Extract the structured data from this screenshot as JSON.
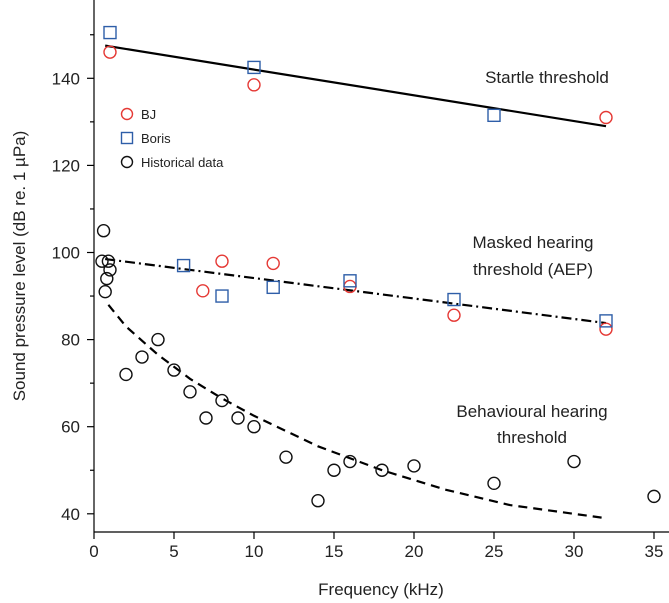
{
  "chart_data": {
    "type": "scatter",
    "xlabel": "Frequency (kHz)",
    "ylabel": "Sound pressure level (dB re. 1 µPa)",
    "xlim": [
      0,
      36
    ],
    "ylim": [
      37,
      153
    ],
    "xticks": [
      "0",
      "5",
      "10",
      "15",
      "20",
      "25",
      "30",
      "35"
    ],
    "yticks": [
      "40",
      "60",
      "80",
      "100",
      "120",
      "140"
    ],
    "grid": false,
    "legend_position": "upper-left",
    "colors": {
      "BJ": "#e53935",
      "Boris": "#2e5ea8",
      "Historical data": "#111111",
      "lines": "#000000"
    },
    "series": [
      {
        "name": "BJ",
        "marker": "circle",
        "points": [
          [
            1,
            146
          ],
          [
            10,
            138.5
          ],
          [
            32,
            131
          ],
          [
            6.8,
            91.2
          ],
          [
            8,
            98
          ],
          [
            11.2,
            97.5
          ],
          [
            16,
            92.2
          ],
          [
            22.5,
            85.6
          ],
          [
            32,
            82.4
          ]
        ]
      },
      {
        "name": "Boris",
        "marker": "square",
        "points": [
          [
            1,
            150.5
          ],
          [
            10,
            142.5
          ],
          [
            25,
            131.5
          ],
          [
            5.6,
            97
          ],
          [
            8,
            90
          ],
          [
            11.2,
            92
          ],
          [
            16,
            93.5
          ],
          [
            22.5,
            89.2
          ],
          [
            32,
            84.3
          ]
        ]
      },
      {
        "name": "Historical data",
        "marker": "circle",
        "points": [
          [
            0.5,
            98
          ],
          [
            0.6,
            105
          ],
          [
            0.7,
            91
          ],
          [
            0.8,
            94
          ],
          [
            0.9,
            98
          ],
          [
            1,
            96
          ],
          [
            2,
            72
          ],
          [
            3,
            76
          ],
          [
            4,
            80
          ],
          [
            5,
            73
          ],
          [
            6,
            68
          ],
          [
            7,
            62
          ],
          [
            8,
            66
          ],
          [
            9,
            62
          ],
          [
            10,
            60
          ],
          [
            12,
            53
          ],
          [
            14,
            43
          ],
          [
            15,
            50
          ],
          [
            16,
            52
          ],
          [
            18,
            50
          ],
          [
            20,
            51
          ],
          [
            25,
            47
          ],
          [
            30,
            52
          ],
          [
            35,
            44
          ]
        ]
      }
    ],
    "fits": [
      {
        "style": "solid",
        "from": [
          0.7,
          147.5
        ],
        "to": [
          32,
          129
        ]
      },
      {
        "style": "dash-dot",
        "from": [
          0.7,
          98.5
        ],
        "to": [
          32,
          83.8
        ]
      },
      {
        "style": "dashed",
        "curve": [
          [
            0.9,
            88
          ],
          [
            2,
            83
          ],
          [
            4,
            76.5
          ],
          [
            6,
            71
          ],
          [
            8,
            66.5
          ],
          [
            10,
            62.5
          ],
          [
            14,
            55.5
          ],
          [
            18,
            50
          ],
          [
            22,
            45.5
          ],
          [
            26,
            42
          ],
          [
            32,
            39
          ]
        ]
      }
    ],
    "annotations": {
      "startle": "Startle threshold",
      "masked_line1": "Masked hearing",
      "masked_line2": "threshold (AEP)",
      "behavioural_line1": "Behavioural hearing",
      "behavioural_line2": "threshold"
    }
  }
}
